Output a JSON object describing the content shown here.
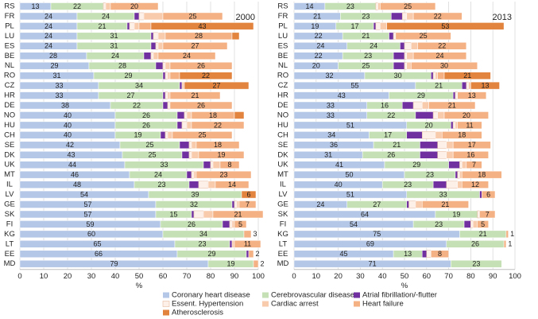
{
  "chart_data": [
    {
      "type": "bar",
      "orientation": "horizontal",
      "stacked": true,
      "title": "2000",
      "xlabel": "%",
      "categories": [
        "RS",
        "FR",
        "PL",
        "LU",
        "ES",
        "BE",
        "NL",
        "RO",
        "CZ",
        "HR",
        "DE",
        "NO",
        "HU",
        "CH",
        "SE",
        "DK",
        "UK",
        "MT",
        "IL",
        "LV",
        "GE",
        "SK",
        "FI",
        "KG",
        "LT",
        "EE",
        "MD"
      ],
      "xlim": [
        0,
        100
      ],
      "xticks": [
        0,
        10,
        20,
        30,
        40,
        50,
        60,
        70,
        80,
        90,
        100
      ],
      "grid": true,
      "series": [
        {
          "name": "Coronary heart disease",
          "color": "#b4c7e7",
          "values": [
            13,
            24,
            24,
            24,
            24,
            28,
            29,
            31,
            33,
            33,
            38,
            40,
            40,
            40,
            42,
            43,
            44,
            46,
            48,
            54,
            57,
            57,
            59,
            60,
            65,
            66,
            79
          ],
          "value_labels": [
            "13",
            "24",
            "24",
            "24",
            "24",
            "28",
            "29",
            "31",
            "33",
            "33",
            "38",
            "40",
            "40",
            "40",
            "42",
            "43",
            "44",
            "46",
            "48",
            "54",
            "57",
            "57",
            "59",
            "60",
            "65",
            "66",
            "79"
          ]
        },
        {
          "name": "Cerebrovascular disease",
          "color": "#c5e0b4",
          "values": [
            22,
            24,
            21,
            31,
            31,
            24,
            28,
            29,
            34,
            27,
            22,
            26,
            26,
            19,
            25,
            25,
            33,
            24,
            23,
            39,
            32,
            15,
            26,
            34,
            23,
            29,
            19
          ],
          "value_labels": [
            "22",
            "24",
            "21",
            "31",
            "31",
            "24",
            "28",
            "29",
            "34",
            "27",
            "22",
            "26",
            "26",
            "19",
            "25",
            "25",
            "33",
            "24",
            "23",
            "39",
            "32",
            "15",
            "26",
            "34",
            "23",
            "29",
            "19"
          ]
        },
        {
          "name": "Atrial fibrillation/-flutter",
          "color": "#7030a0",
          "values": [
            0,
            2,
            1,
            1,
            2,
            3,
            3,
            1,
            1,
            1,
            2,
            3,
            2,
            2,
            4,
            3,
            3,
            2,
            4,
            0,
            1,
            1,
            3,
            0,
            1,
            1,
            0
          ],
          "value_labels": [
            null,
            null,
            null,
            null,
            null,
            null,
            null,
            null,
            null,
            null,
            null,
            null,
            null,
            null,
            null,
            null,
            null,
            null,
            null,
            null,
            null,
            null,
            null,
            null,
            null,
            null,
            null
          ]
        },
        {
          "name": "Essent. Hypertension",
          "color": "#fdf0e8",
          "values": [
            1,
            2,
            2,
            2,
            1,
            1,
            1,
            1,
            0,
            1,
            1,
            1,
            2,
            1,
            1,
            1,
            1,
            1,
            4,
            0,
            1,
            4,
            1,
            0,
            0,
            0,
            0
          ],
          "value_labels": [
            null,
            null,
            null,
            null,
            null,
            null,
            null,
            null,
            null,
            null,
            null,
            null,
            null,
            null,
            null,
            null,
            null,
            null,
            null,
            null,
            null,
            null,
            null,
            null,
            null,
            null,
            null
          ]
        },
        {
          "name": "Cardiac arrest",
          "color": "#f8cbad",
          "values": [
            2,
            8,
            2,
            3,
            2,
            2,
            2,
            1,
            1,
            1,
            0,
            2,
            2,
            2,
            2,
            3,
            3,
            1,
            3,
            0,
            1,
            4,
            1,
            0,
            1,
            0,
            0
          ],
          "value_labels": [
            null,
            null,
            null,
            null,
            null,
            null,
            null,
            null,
            null,
            null,
            null,
            null,
            null,
            null,
            null,
            null,
            null,
            null,
            null,
            null,
            null,
            null,
            null,
            null,
            null,
            null,
            null
          ]
        },
        {
          "name": "Heart failure",
          "color": "#f4b183",
          "values": [
            20,
            25,
            5,
            28,
            27,
            24,
            26,
            4,
            0,
            21,
            26,
            18,
            22,
            25,
            18,
            19,
            8,
            23,
            14,
            0,
            7,
            21,
            5,
            3,
            11,
            2,
            2
          ],
          "value_labels": [
            "20",
            "25",
            null,
            "28",
            "27",
            "24",
            "26",
            null,
            null,
            "21",
            "26",
            "18",
            "22",
            "25",
            "18",
            "19",
            "8",
            "23",
            "14",
            null,
            "7",
            "21",
            "5",
            "3",
            "11",
            "2",
            "2"
          ]
        },
        {
          "name": "Atherosclerosis",
          "color": "#e2843d",
          "values": [
            0,
            0,
            43,
            3,
            0,
            0,
            0,
            22,
            27,
            0,
            0,
            4,
            0,
            0,
            0,
            0,
            0,
            0,
            0,
            6,
            0,
            0,
            0,
            0,
            0,
            0,
            0
          ],
          "value_labels": [
            null,
            null,
            "43",
            null,
            null,
            null,
            null,
            "22",
            "27",
            null,
            null,
            null,
            null,
            null,
            null,
            null,
            null,
            null,
            null,
            "6",
            null,
            null,
            null,
            null,
            null,
            null,
            null
          ]
        }
      ]
    },
    {
      "type": "bar",
      "orientation": "horizontal",
      "stacked": true,
      "title": "2013",
      "xlabel": "%",
      "categories": [
        "RS",
        "FR",
        "PL",
        "LU",
        "ES",
        "BE",
        "NL",
        "RO",
        "CZ",
        "HR",
        "DE",
        "NO",
        "HU",
        "CH",
        "SE",
        "DK",
        "UK",
        "MT",
        "IL",
        "LV",
        "GE",
        "SK",
        "FI",
        "KG",
        "LT",
        "EE",
        "MD"
      ],
      "xlim": [
        0,
        100
      ],
      "xticks": [
        0,
        10,
        20,
        30,
        40,
        50,
        60,
        70,
        80,
        90,
        100
      ],
      "grid": true,
      "series": [
        {
          "color": "#b4c7e7",
          "values": [
            14,
            21,
            19,
            22,
            24,
            22,
            20,
            32,
            55,
            43,
            33,
            33,
            51,
            34,
            36,
            31,
            41,
            50,
            40,
            51,
            24,
            64,
            54,
            75,
            69,
            45,
            71
          ],
          "value_labels": [
            "14",
            "21",
            "19",
            "22",
            "24",
            "22",
            "20",
            "32",
            "55",
            "43",
            "33",
            "33",
            "51",
            "34",
            "36",
            "31",
            "41",
            "50",
            "40",
            "51",
            "24",
            "64",
            "54",
            "75",
            "69",
            "45",
            "71"
          ]
        },
        {
          "color": "#c5e0b4",
          "values": [
            23,
            23,
            17,
            21,
            24,
            23,
            25,
            30,
            21,
            29,
            16,
            22,
            20,
            17,
            21,
            26,
            29,
            23,
            23,
            33,
            27,
            19,
            23,
            21,
            26,
            13,
            23
          ],
          "value_labels": [
            "23",
            "23",
            "17",
            "21",
            "24",
            "23",
            "25",
            "30",
            "21",
            "29",
            "16",
            "22",
            "20",
            "17",
            "21",
            "26",
            "29",
            "23",
            "23",
            "33",
            "27",
            "19",
            "23",
            "21",
            "26",
            "13",
            "23"
          ]
        },
        {
          "color": "#7030a0",
          "values": [
            0,
            5,
            1,
            2,
            2,
            5,
            5,
            1,
            2,
            1,
            5,
            8,
            1,
            7,
            8,
            8,
            5,
            1,
            6,
            1,
            1,
            0,
            3,
            0,
            0,
            2,
            0
          ],
          "value_labels": [
            null,
            null,
            null,
            null,
            null,
            null,
            null,
            null,
            null,
            null,
            null,
            null,
            null,
            null,
            null,
            null,
            null,
            null,
            null,
            null,
            null,
            null,
            null,
            null,
            null,
            null,
            null
          ]
        },
        {
          "color": "#fdf0e8",
          "values": [
            1,
            2,
            2,
            1,
            3,
            1,
            1,
            1,
            1,
            1,
            4,
            2,
            1,
            6,
            4,
            4,
            1,
            1,
            5,
            0,
            3,
            1,
            1,
            0,
            0,
            2,
            0
          ],
          "value_labels": [
            null,
            null,
            null,
            null,
            null,
            null,
            null,
            null,
            null,
            null,
            null,
            null,
            null,
            null,
            null,
            null,
            null,
            null,
            null,
            null,
            null,
            null,
            null,
            null,
            null,
            null,
            null
          ]
        },
        {
          "color": "#f8cbad",
          "values": [
            1,
            3,
            3,
            0,
            3,
            3,
            2,
            1,
            1,
            0,
            3,
            3,
            1,
            3,
            3,
            3,
            2,
            1,
            2,
            0,
            3,
            0,
            2,
            0,
            0,
            0,
            0
          ],
          "value_labels": [
            null,
            null,
            null,
            null,
            null,
            null,
            null,
            null,
            null,
            null,
            null,
            null,
            null,
            null,
            null,
            null,
            null,
            null,
            null,
            null,
            null,
            null,
            null,
            null,
            null,
            null,
            null
          ]
        },
        {
          "color": "#f4b183",
          "values": [
            25,
            22,
            0,
            25,
            22,
            24,
            30,
            3,
            0,
            13,
            21,
            20,
            11,
            18,
            17,
            16,
            7,
            18,
            12,
            6,
            21,
            7,
            5,
            1,
            1,
            8,
            0
          ],
          "value_labels": [
            "25",
            "22",
            null,
            "25",
            "22",
            "24",
            "30",
            null,
            null,
            "13",
            "21",
            "20",
            "11",
            "18",
            "17",
            "16",
            "7",
            "18",
            "12",
            "6",
            "21",
            "7",
            "5",
            "1",
            "1",
            "8",
            null
          ]
        },
        {
          "color": "#e2843d",
          "values": [
            0,
            0,
            53,
            0,
            0,
            0,
            0,
            21,
            13,
            0,
            0,
            0,
            0,
            0,
            0,
            0,
            0,
            0,
            0,
            0,
            0,
            0,
            0,
            0,
            0,
            0,
            0
          ],
          "value_labels": [
            null,
            null,
            "53",
            null,
            null,
            null,
            null,
            "21",
            "13",
            null,
            null,
            null,
            null,
            null,
            null,
            null,
            null,
            null,
            null,
            null,
            null,
            null,
            null,
            null,
            null,
            null,
            null
          ]
        }
      ]
    }
  ]
}
